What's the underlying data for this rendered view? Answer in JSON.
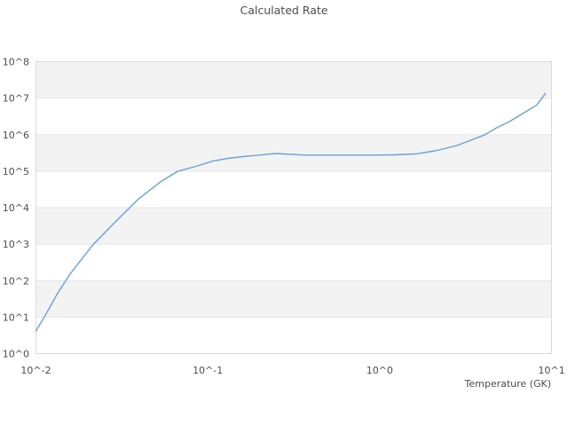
{
  "chart_data": {
    "type": "line",
    "title": "Calculated Rate",
    "xlabel": "Temperature (GK)",
    "ylabel": "",
    "xscale": "log",
    "yscale": "log",
    "xlim": [
      0.01,
      10
    ],
    "ylim": [
      1,
      100000000
    ],
    "grid": "horizontal-gridlines-with-alternating-bands",
    "legend_position": "none",
    "x_ticks": [
      {
        "label": "10^-2",
        "exp": -2
      },
      {
        "label": "10^-1",
        "exp": -1
      },
      {
        "label": "10^0",
        "exp": 0
      },
      {
        "label": "10^1",
        "exp": 1
      }
    ],
    "y_ticks": [
      {
        "label": "10^0",
        "exp": 0
      },
      {
        "label": "10^1",
        "exp": 1
      },
      {
        "label": "10^2",
        "exp": 2
      },
      {
        "label": "10^3",
        "exp": 3
      },
      {
        "label": "10^4",
        "exp": 4
      },
      {
        "label": "10^5",
        "exp": 5
      },
      {
        "label": "10^6",
        "exp": 6
      },
      {
        "label": "10^7",
        "exp": 7
      },
      {
        "label": "10^8",
        "exp": 8
      }
    ],
    "style": {
      "line_color": "#68a1da",
      "band_color": "#f3f3f3",
      "grid_color": "#e5e5e5",
      "border_color": "#dadada",
      "text_color": "#4d4d4d",
      "background": "#ffffff"
    },
    "series": [
      {
        "name": "calculated rate",
        "color": "#68a1da",
        "points": [
          [
            0.01,
            4.2
          ],
          [
            0.0113,
            11
          ],
          [
            0.0134,
            46
          ],
          [
            0.016,
            165
          ],
          [
            0.0216,
            1000
          ],
          [
            0.029,
            4100
          ],
          [
            0.039,
            16500
          ],
          [
            0.053,
            51000
          ],
          [
            0.067,
            100000
          ],
          [
            0.085,
            135000
          ],
          [
            0.107,
            190000
          ],
          [
            0.136,
            230000
          ],
          [
            0.173,
            260000
          ],
          [
            0.22,
            290000
          ],
          [
            0.25,
            305000
          ],
          [
            0.31,
            290000
          ],
          [
            0.37,
            275000
          ],
          [
            0.55,
            275000
          ],
          [
            0.9,
            275000
          ],
          [
            1.2,
            280000
          ],
          [
            1.64,
            300000
          ],
          [
            2.1,
            360000
          ],
          [
            2.8,
            500000
          ],
          [
            4.1,
            1000000
          ],
          [
            4.8,
            1550000
          ],
          [
            5.7,
            2300000
          ],
          [
            6.8,
            3800000
          ],
          [
            8.2,
            6500000
          ],
          [
            9.2,
            13500000
          ]
        ]
      }
    ]
  }
}
